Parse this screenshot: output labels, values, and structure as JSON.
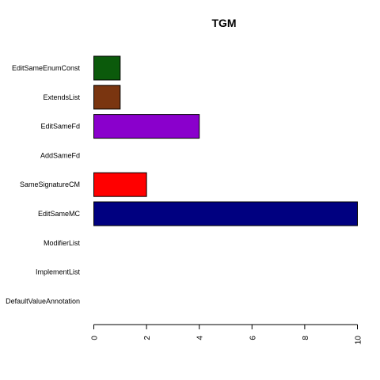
{
  "chart_data": {
    "type": "bar",
    "orientation": "horizontal",
    "title": "TGM",
    "xlabel": "",
    "ylabel": "",
    "xlim": [
      0,
      10
    ],
    "ticks": [
      0,
      2,
      4,
      6,
      8,
      10
    ],
    "grid": false,
    "categories": [
      "EditSameEnumConst",
      "ExtendsList",
      "EditSameFd",
      "AddSameFd",
      "SameSignatureCM",
      "EditSameMC",
      "ModifierList",
      "ImplementList",
      "DefaultValueAnnotation"
    ],
    "values": [
      1,
      1,
      4,
      0,
      2,
      10,
      0,
      0,
      0
    ],
    "colors": [
      "#0b5a0b",
      "#7a3510",
      "#8a00cc",
      "#000000",
      "#ff0000",
      "#000080",
      "#000000",
      "#000000",
      "#000000"
    ]
  }
}
